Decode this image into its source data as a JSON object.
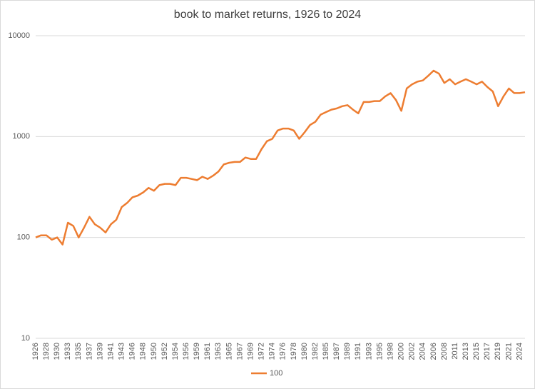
{
  "chart_data": {
    "type": "line",
    "title": "book to market returns, 1926 to 2024",
    "categories": [
      "1926",
      null,
      "1928",
      null,
      "1930",
      null,
      "1933",
      null,
      "1935",
      null,
      "1937",
      null,
      "1939",
      null,
      "1941",
      null,
      "1943",
      null,
      "1946",
      null,
      "1948",
      null,
      "1950",
      null,
      "1952",
      null,
      "1954",
      null,
      "1956",
      null,
      "1959",
      null,
      "1961",
      null,
      "1963",
      null,
      "1965",
      null,
      "1967",
      null,
      "1969",
      null,
      "1972",
      null,
      "1974",
      null,
      "1976",
      null,
      "1978",
      null,
      "1980",
      null,
      "1982",
      null,
      "1985",
      null,
      "1987",
      null,
      "1989",
      null,
      "1991",
      null,
      "1993",
      null,
      "1995",
      null,
      "1998",
      null,
      "2000",
      null,
      "2002",
      null,
      "2004",
      null,
      "2006",
      null,
      "2008",
      null,
      "2011",
      null,
      "2013",
      null,
      "2015",
      null,
      "2017",
      null,
      "2019",
      null,
      "2021",
      null,
      "2024",
      null
    ],
    "series": [
      {
        "name": "100",
        "color": "#ed7d31",
        "values": [
          100,
          105,
          105,
          95,
          100,
          85,
          140,
          130,
          100,
          125,
          160,
          135,
          125,
          112,
          135,
          150,
          200,
          220,
          250,
          260,
          280,
          310,
          290,
          330,
          340,
          340,
          330,
          390,
          390,
          380,
          370,
          400,
          380,
          410,
          450,
          530,
          550,
          560,
          560,
          620,
          600,
          600,
          750,
          900,
          950,
          1150,
          1200,
          1200,
          1150,
          950,
          1100,
          1300,
          1400,
          1650,
          1750,
          1850,
          1900,
          2000,
          2050,
          1850,
          1700,
          2200,
          2200,
          2250,
          2250,
          2500,
          2700,
          2300,
          1800,
          3000,
          3300,
          3500,
          3600,
          4000,
          4500,
          4200,
          3400,
          3700,
          3300,
          3500,
          3700,
          3500,
          3300,
          3500,
          3100,
          2800,
          2000,
          2500,
          3000,
          2700,
          2700,
          2750
        ]
      }
    ],
    "ylim": [
      10,
      10000
    ],
    "yticks": [
      10,
      100,
      1000,
      10000
    ],
    "log_y": true,
    "grid": true,
    "legend": "bottom"
  }
}
